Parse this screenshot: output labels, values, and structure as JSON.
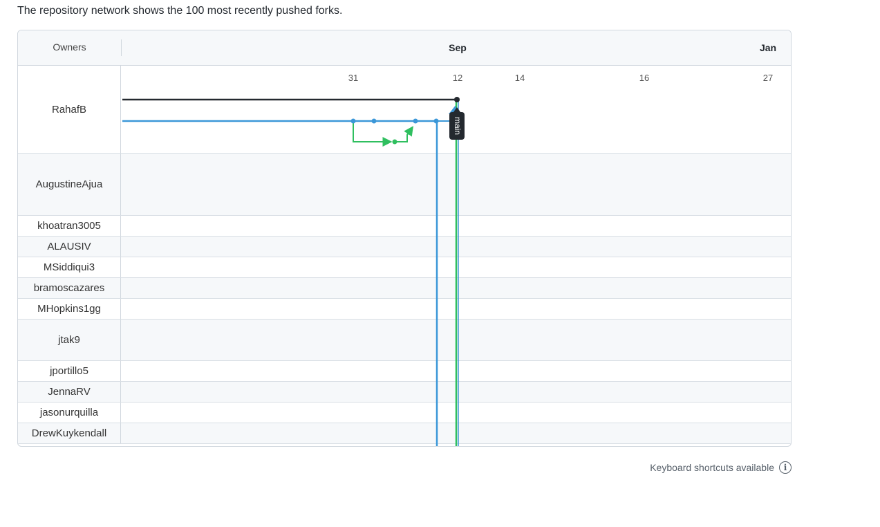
{
  "intro_text": "The repository network shows the 100 most recently pushed forks.",
  "header": {
    "owners_label": "Owners",
    "months": [
      "Sep",
      "Jan"
    ]
  },
  "days": [
    "31",
    "12",
    "14",
    "16",
    "27"
  ],
  "owners": [
    "RahafB",
    "AugustineAjua",
    "khoatran3005",
    "ALAUSIV",
    "MSiddiqui3",
    "bramoscazares",
    "MHopkins1gg",
    "jtak9",
    "jportillo5",
    "JennaRV",
    "jasonurquilla",
    "DrewKuykendall"
  ],
  "branch_label": "main",
  "footer": {
    "shortcuts_label": "Keyboard shortcuts available",
    "info_icon": "i"
  },
  "colors": {
    "main_line": "#24292f",
    "fork_blue": "#3b97d8",
    "fork_green": "#2fbf5f",
    "border": "#d0d7de",
    "header_bg": "#f6f8fa"
  }
}
